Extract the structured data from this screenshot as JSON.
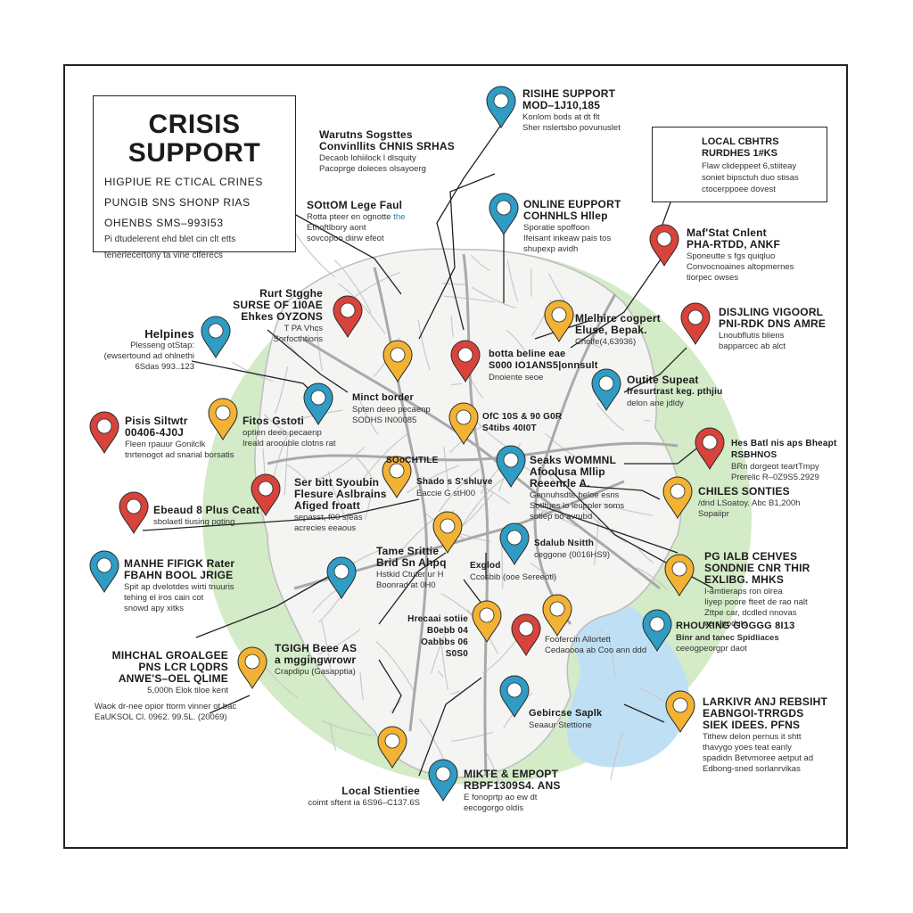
{
  "colors": {
    "pin_red": "#d8433c",
    "pin_orange": "#f2b233",
    "pin_blue": "#2f9cc4",
    "park_green": "#d3ebc7",
    "water_blue": "#bfe0f4",
    "road_grey": "#c7c7c7"
  },
  "title": {
    "heading": "CRISIS SUPPORT",
    "sub_line1": "HIGPIUE RE CTICAL CRINES",
    "sub_line2": "PUNGIB SNS SHONP RIAS",
    "sub_line3": "OHENBS SMS–993I53",
    "desc_line1": "Pi dtudelerent ehd blet cin clt etts",
    "desc_line2": "tenerlecertony ta vine clferecs"
  },
  "local_box": {
    "title1": "LOCAL CBHTRS",
    "title2": "RURDHES 1#KS",
    "desc1": "Flaw clideppeet 6,stiiteay",
    "desc2": "soniet bipsctuh duo stisas",
    "desc3": "ctocerppoee dovest"
  },
  "labels": [
    {
      "id": "rishe",
      "title": "RISIHE SUPPORT",
      "title2": "MOD–1J10,185",
      "desc": "Konlom bods at dt flt",
      "desc2": "Sher nslertsbo povunuslet"
    },
    {
      "id": "warnns",
      "title": "Warutns Sogsttes",
      "title2": "Convinllits CHNIS SRHAS",
      "desc": "Decaob lohiilock l dlsquity",
      "desc2": "Pacoprge doleces olsayoerg"
    },
    {
      "id": "sottom",
      "title": "SOttOM Lege Faul",
      "title2": "",
      "desc": "Rotta pteer en ognotte",
      "desc2": "Ethoftlbory aont",
      "desc3": "sovcopoo diirw efeot",
      "accent": "the"
    },
    {
      "id": "online",
      "title": "ONLINE EUPPORT",
      "title2": "COHNHLS Hllep",
      "desc": "Sporatie  spoffoon",
      "desc2": "Ifeisant inkeaw pais tos",
      "desc3": "shupexp avidh"
    },
    {
      "id": "mafstat",
      "title": "Maf'Stat Cnlent",
      "title2": "PHA-RTDD, ANKF",
      "desc": "Sponeutte s fgs quiqluo",
      "desc2": "Convocnoaines altopmernes",
      "desc3": "tiorpec owses"
    },
    {
      "id": "rurstb",
      "title": "Rurt Stgghe",
      "title2": "SURSE OF 1I0AE",
      "title3": "Ehkes OYZONS",
      "desc": "T PA Vhcs",
      "desc2": "Sorfocthtions"
    },
    {
      "id": "melhire",
      "title": "Mlelhire cogpert",
      "title2": "Eluse, Bepak.",
      "desc": "Cholfe(4,63936)"
    },
    {
      "id": "distinc",
      "title": "DISJLING VIGOORL",
      "title2": "PNI-RDK DNS AMRE",
      "desc": "Lnoubflutis bliens",
      "desc2": "bapparcec ab alct"
    },
    {
      "id": "helpines",
      "title": "Helpines",
      "desc": "Plesseng otStap:",
      "desc2": "(ewsertound ad ohlnethi",
      "desc3": "6Sdas 993..123"
    },
    {
      "id": "botta",
      "title": "botta beline eae",
      "title2": "S000 IO1ANS5|onnsult",
      "desc": "Dnoiente seoe"
    },
    {
      "id": "minct",
      "title": "Minct border",
      "desc": "Spten deeo pecaenp",
      "desc2": "SODHS IN00085"
    },
    {
      "id": "outite",
      "title": "Outite Supeat",
      "title2": "fresurtrast keg. pthjiu",
      "desc": "delon ane jdldy"
    },
    {
      "id": "pisis",
      "title": "Pisis Siltwtr",
      "title2": "00406-4J0J",
      "desc": "Fleen rpauur Gonilclk",
      "desc2": "tnrtenogot ad snarial borsatis"
    },
    {
      "id": "fitos",
      "title": "Fitos Gstoti",
      "desc": "optien deeo pecaenp",
      "desc2": "Ireald aroouble clotns rat"
    },
    {
      "id": "ofc",
      "title": "OfC 10S & 90 G0R",
      "title2": "S4tibs 40I0T"
    },
    {
      "id": "hes",
      "title": "Hes Batl nis aps Bheapt",
      "title2": "RSBHNOS",
      "desc": "BRn dorgeot teartTmpy",
      "desc2": "Prerelic R–0Z9S5.2929"
    },
    {
      "id": "solthle",
      "title": "SOoCHTILE",
      "desc": ""
    },
    {
      "id": "seaks",
      "title": "Seaks WOMMNL",
      "title2": "Afoolusa Mllip",
      "title3": "Reeenrle A.",
      "desc": "Gennuhsdte beloe esns",
      "desc2": "Sotltues lo leuppler soms",
      "desc3": "sotiep bo avrubd"
    },
    {
      "id": "shado",
      "title": "Shado s S'shluve",
      "desc": "Eaccie G stH00"
    },
    {
      "id": "serbit",
      "title": "Ser bitt Syoubin",
      "title2": "Flesure Aslbrains",
      "title3": "Afiged froatt",
      "desc": "sepasst, f00 sfeas",
      "desc2": "acrecies eeaous"
    },
    {
      "id": "chlies",
      "title": "CHILES SONTIES",
      "desc": "/dnd LSoatoy. Abc B1,200h",
      "desc2": "Sopaiipr"
    },
    {
      "id": "ebeaud",
      "title": "Ebeaud 8 Plus Ceatt",
      "desc": "sbolaetl tiusing pgting"
    },
    {
      "id": "pgial",
      "title": "PG IALB CEHVES",
      "title2": "SONDNIE CNR THIR",
      "title3": "EXLIBG. MHKS",
      "desc": "I-amtieraps ron olrea",
      "desc2": "Iiyep poore fteet de rao nalt",
      "desc3": "Zttpe car, dcdled nnovas",
      "desc4": "ve slpoduto"
    },
    {
      "id": "tame",
      "title": "Tame Srittie",
      "title2": "Brid Sn Ahpq",
      "desc": "Hstkid Ctuter ur H",
      "desc2": "Boonrad at 0H0"
    },
    {
      "id": "exgod",
      "title": "Exglod",
      "desc": "Ccosbib (ooe Sereeotl)"
    },
    {
      "id": "sdalub",
      "title": "Sdalub Nsitth",
      "desc": "ceggone (0016HS9)"
    },
    {
      "id": "manhe",
      "title": "MANHE FIFIGK Rater",
      "title2": "FBAHN BOOL JRIGE",
      "desc": "Spit ap dvelotdes wirti tnuuris",
      "desc2": "tehing el iros cain cot",
      "desc3": "snowd apy xitks"
    },
    {
      "id": "hrecaai",
      "title": "Hrecaai sotiie",
      "title2": "B0ebb 04",
      "title3": "Oabbbs 06 S0S0"
    },
    {
      "id": "rhouxing",
      "title": "RHOUXING  GOGGG 8I13",
      "desc": "Binr and tanec Spidliaces",
      "desc2": "ceeogpeorgpr daot"
    },
    {
      "id": "foolsman",
      "title": "Foofercin Allortett",
      "title2": "Cedaoooa ab Coo ann ddd"
    },
    {
      "id": "mihchal",
      "title": "MIHCHAL GROALGEE",
      "title2": "PNS LCR LQDRS",
      "title3": "ANWE'S–OEL QLIME",
      "desc": "5,000h Elok tiloe kent",
      "desc2": "Waok dr-nee opior ttorm vinner ot bac",
      "desc3": "EaUKSOL Cl. 0962. 99.5L. (20069)"
    },
    {
      "id": "tgigh",
      "title": "TGIGH Beee AS",
      "title2": "a mggingwrowr",
      "desc": "Crapdipu (Gasapptia)"
    },
    {
      "id": "gebirce",
      "title": "Gebircse Saplk",
      "title2": "Seaaur Stettione"
    },
    {
      "id": "larkivr",
      "title": "LARKIVR ANJ REBSIHT",
      "title2": "EABNGOI-TRRGDS",
      "title3": "SIEK IDEES. PFNS",
      "desc": "Tithew delon pernus it shtt",
      "desc2": "thavygo yoes teat eanly",
      "desc3": "spadidn Betvmoree aetput ad",
      "desc4": "Edbong-sned sorlanrvikas"
    },
    {
      "id": "mikte",
      "title": "MIKTE & EMPOPT",
      "title2": "RBPF1309S4. ANS",
      "desc": "E fonoprtp ao ew dt",
      "desc2": "eecogorgo oldis"
    },
    {
      "id": "localst",
      "title": "Local Stientiee",
      "desc": "coimt sftent ia 6S96–C137.6S"
    }
  ]
}
